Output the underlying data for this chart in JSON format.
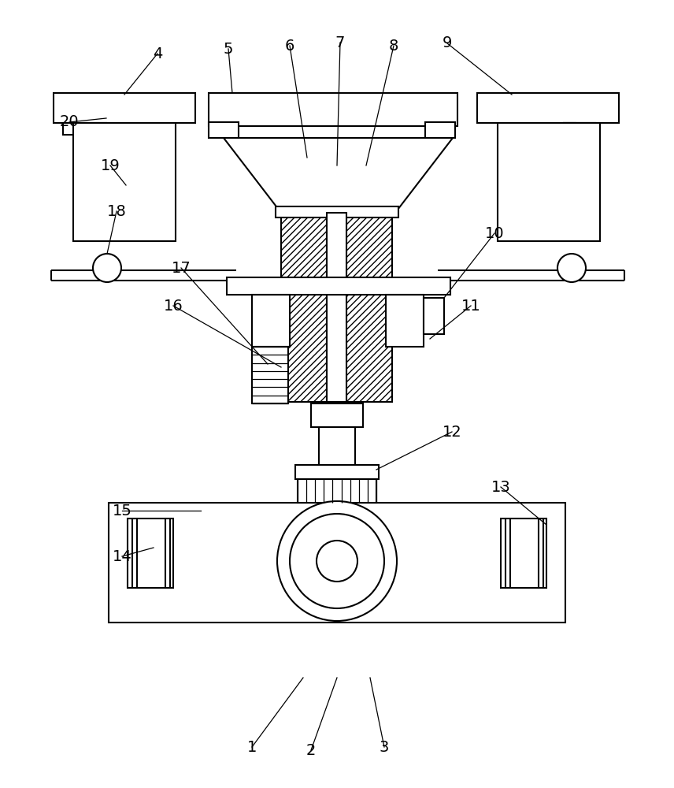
{
  "bg_color": "#ffffff",
  "line_color": "#000000",
  "fig_width": 8.56,
  "fig_height": 10.0,
  "dpi": 100
}
